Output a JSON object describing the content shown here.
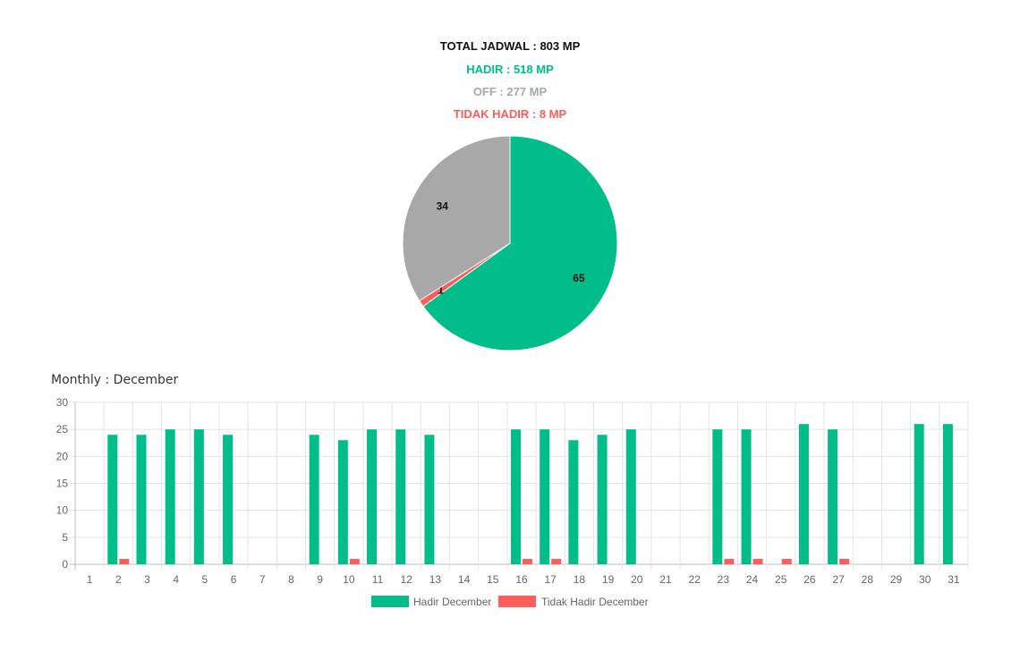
{
  "summary": {
    "total": "TOTAL JADWAL : 803 MP",
    "hadir": "HADIR : 518 MP",
    "off": "OFF : 277 MP",
    "tidak_hadir": "TIDAK HADIR : 8 MP"
  },
  "colors": {
    "hadir": "#00bd8a",
    "off": "#a8a8a8",
    "tidak_hadir": "#ff5c5c",
    "title": "#111111",
    "axis_text": "#666666",
    "grid": "#e5e5e5"
  },
  "chart_data": [
    {
      "type": "pie",
      "slices": [
        {
          "label": "HADIR",
          "value": 65,
          "display": "65",
          "color": "#00bd8a"
        },
        {
          "label": "TIDAK HADIR",
          "value": 1,
          "display": "1",
          "color": "#ff5c5c"
        },
        {
          "label": "OFF",
          "value": 34,
          "display": "34",
          "color": "#a8a8a8"
        }
      ]
    },
    {
      "type": "bar",
      "title": "Monthly : December",
      "categories": [
        "1",
        "2",
        "3",
        "4",
        "5",
        "6",
        "7",
        "8",
        "9",
        "10",
        "11",
        "12",
        "13",
        "14",
        "15",
        "16",
        "17",
        "18",
        "19",
        "20",
        "21",
        "22",
        "23",
        "24",
        "25",
        "26",
        "27",
        "28",
        "29",
        "30",
        "31"
      ],
      "series": [
        {
          "name": "Hadir December",
          "color": "#00bd8a",
          "values": [
            0,
            24,
            24,
            25,
            25,
            24,
            0,
            0,
            24,
            23,
            25,
            25,
            24,
            0,
            0,
            25,
            25,
            23,
            24,
            25,
            0,
            0,
            25,
            25,
            0,
            26,
            25,
            0,
            0,
            26,
            26
          ]
        },
        {
          "name": "Tidak Hadir December",
          "color": "#ff5c5c",
          "values": [
            0,
            1,
            0,
            0,
            0,
            0,
            0,
            0,
            0,
            1,
            0,
            0,
            0,
            0,
            0,
            1,
            1,
            0,
            0,
            0,
            0,
            0,
            1,
            1,
            1,
            0,
            1,
            0,
            0,
            0,
            0
          ]
        }
      ],
      "ylim": [
        0,
        30
      ],
      "yticks": [
        0,
        5,
        10,
        15,
        20,
        25,
        30
      ],
      "grid": true,
      "legend": "bottom-center"
    }
  ]
}
